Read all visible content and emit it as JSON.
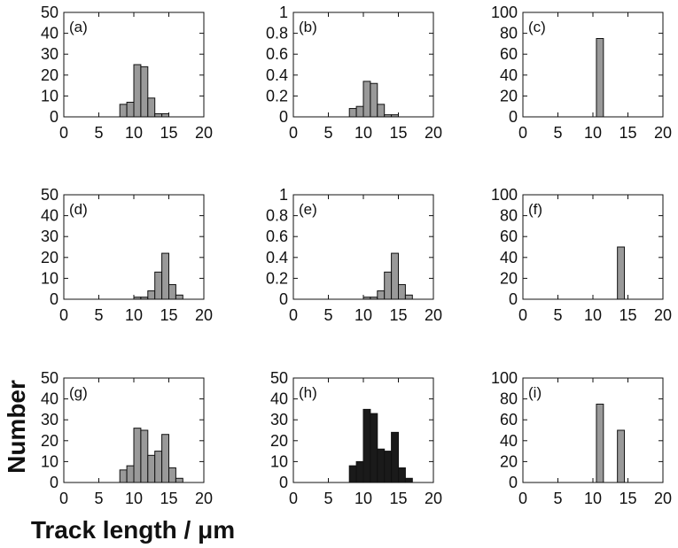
{
  "figure": {
    "ylabel": "Number",
    "xlabel": "Track length / μm"
  },
  "chart_data": [
    {
      "id": "a",
      "type": "bar",
      "label": "(a)",
      "xlim": [
        0,
        20
      ],
      "ylim": [
        0,
        50
      ],
      "xticks": [
        "0",
        "5",
        "10",
        "15",
        "20"
      ],
      "yticks": [
        "0",
        "10",
        "20",
        "30",
        "40",
        "50"
      ],
      "bin_width": 1,
      "bins": [
        8,
        9,
        10,
        11,
        12,
        13,
        14
      ],
      "values": [
        6,
        7,
        25,
        24,
        9,
        1.5,
        1.5
      ],
      "color": "#999999"
    },
    {
      "id": "b",
      "type": "bar",
      "label": "(b)",
      "xlim": [
        0,
        20
      ],
      "ylim": [
        0,
        1
      ],
      "xticks": [
        "0",
        "5",
        "10",
        "15",
        "20"
      ],
      "yticks": [
        "0",
        "0.2",
        "0.4",
        "0.6",
        "0.8",
        "1"
      ],
      "bin_width": 1,
      "bins": [
        8,
        9,
        10,
        11,
        12,
        13,
        14
      ],
      "values": [
        0.08,
        0.1,
        0.34,
        0.32,
        0.12,
        0.02,
        0.02
      ],
      "color": "#999999"
    },
    {
      "id": "c",
      "type": "bar",
      "label": "(c)",
      "xlim": [
        0,
        20
      ],
      "ylim": [
        0,
        100
      ],
      "xticks": [
        "0",
        "5",
        "10",
        "15",
        "20"
      ],
      "yticks": [
        "0",
        "20",
        "40",
        "60",
        "80",
        "100"
      ],
      "bin_width": 1,
      "bins": [
        10.5
      ],
      "values": [
        75
      ],
      "color": "#999999"
    },
    {
      "id": "d",
      "type": "bar",
      "label": "(d)",
      "xlim": [
        0,
        20
      ],
      "ylim": [
        0,
        50
      ],
      "xticks": [
        "0",
        "5",
        "10",
        "15",
        "20"
      ],
      "yticks": [
        "0",
        "10",
        "20",
        "30",
        "40",
        "50"
      ],
      "bin_width": 1,
      "bins": [
        10,
        11,
        12,
        13,
        14,
        15,
        16
      ],
      "values": [
        1,
        1,
        4,
        13,
        22,
        7,
        2
      ],
      "color": "#999999"
    },
    {
      "id": "e",
      "type": "bar",
      "label": "(e)",
      "xlim": [
        0,
        20
      ],
      "ylim": [
        0,
        1
      ],
      "xticks": [
        "0",
        "5",
        "10",
        "15",
        "20"
      ],
      "yticks": [
        "0",
        "0.2",
        "0.4",
        "0.6",
        "0.8",
        "1"
      ],
      "bin_width": 1,
      "bins": [
        10,
        11,
        12,
        13,
        14,
        15,
        16
      ],
      "values": [
        0.02,
        0.02,
        0.08,
        0.26,
        0.44,
        0.14,
        0.04
      ],
      "color": "#999999"
    },
    {
      "id": "f",
      "type": "bar",
      "label": "(f)",
      "xlim": [
        0,
        20
      ],
      "ylim": [
        0,
        100
      ],
      "xticks": [
        "0",
        "5",
        "10",
        "15",
        "20"
      ],
      "yticks": [
        "0",
        "20",
        "40",
        "60",
        "80",
        "100"
      ],
      "bin_width": 1,
      "bins": [
        13.5
      ],
      "values": [
        50
      ],
      "color": "#999999"
    },
    {
      "id": "g",
      "type": "bar",
      "label": "(g)",
      "xlim": [
        0,
        20
      ],
      "ylim": [
        0,
        50
      ],
      "xticks": [
        "0",
        "5",
        "10",
        "15",
        "20"
      ],
      "yticks": [
        "0",
        "10",
        "20",
        "30",
        "40",
        "50"
      ],
      "bin_width": 1,
      "bins": [
        8,
        9,
        10,
        11,
        12,
        13,
        14,
        15,
        16
      ],
      "values": [
        6,
        8,
        26,
        25,
        13,
        15,
        23,
        7,
        2
      ],
      "color": "#999999"
    },
    {
      "id": "h",
      "type": "bar",
      "label": "(h)",
      "xlim": [
        0,
        20
      ],
      "ylim": [
        0,
        50
      ],
      "xticks": [
        "0",
        "5",
        "10",
        "15",
        "20"
      ],
      "yticks": [
        "0",
        "10",
        "20",
        "30",
        "40",
        "50"
      ],
      "bin_width": 1,
      "bins": [
        8,
        9,
        10,
        11,
        12,
        13,
        14,
        15,
        16
      ],
      "values": [
        8,
        10,
        35,
        33,
        16,
        15,
        24,
        7,
        2
      ],
      "color": "#1a1a1a"
    },
    {
      "id": "i",
      "type": "bar",
      "label": "(i)",
      "xlim": [
        0,
        20
      ],
      "ylim": [
        0,
        100
      ],
      "xticks": [
        "0",
        "5",
        "10",
        "15",
        "20"
      ],
      "yticks": [
        "0",
        "20",
        "40",
        "60",
        "80",
        "100"
      ],
      "bin_width": 1,
      "bins": [
        10.5,
        13.5
      ],
      "values": [
        75,
        50
      ],
      "color": "#999999"
    }
  ]
}
